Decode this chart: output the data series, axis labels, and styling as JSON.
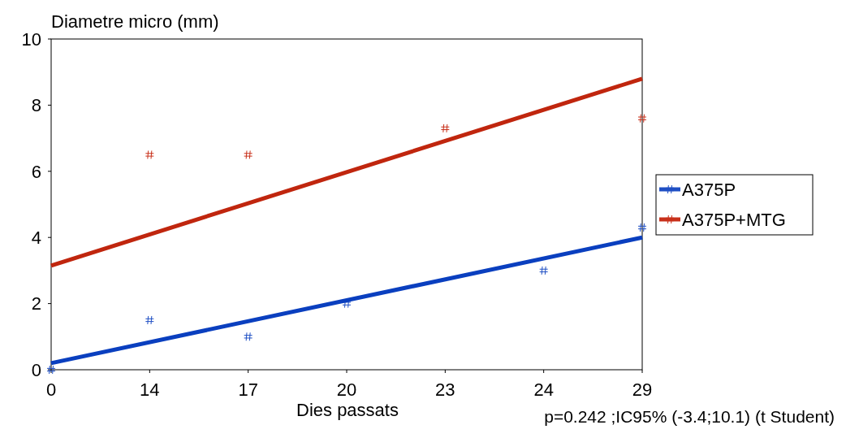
{
  "chart_data": {
    "type": "scatter",
    "ylabel": "Diametre micro (mm)",
    "xlabel": "Dies passats",
    "categories": [
      "0",
      "14",
      "17",
      "20",
      "23",
      "24",
      "29"
    ],
    "ylim": [
      0,
      10
    ],
    "yticks": [
      0,
      2,
      4,
      6,
      8,
      10
    ],
    "grid": false,
    "legend": "right",
    "series": [
      {
        "name": "A375P",
        "marker": "cross",
        "color": "#1f4fc4",
        "x": [
          "0",
          "14",
          "17",
          "20",
          "24",
          "29"
        ],
        "values": [
          0,
          1.5,
          1.0,
          2.0,
          3.0,
          4.3
        ]
      },
      {
        "name": "A375P+MTG",
        "marker": "cross",
        "color": "#c8301a",
        "x": [
          "14",
          "17",
          "23",
          "29"
        ],
        "values": [
          6.5,
          6.5,
          7.3,
          7.6
        ]
      },
      {
        "type": "line",
        "color": "#0a3fbf",
        "x": [
          "0",
          "29"
        ],
        "values": [
          0.2,
          4.0
        ]
      },
      {
        "type": "line",
        "color": "#c0260e",
        "x": [
          "0",
          "29"
        ],
        "values": [
          3.15,
          8.8
        ]
      }
    ],
    "annotations": [
      "p=0.242 ;IC95% (-3.4;10.1) (t Student)"
    ]
  }
}
